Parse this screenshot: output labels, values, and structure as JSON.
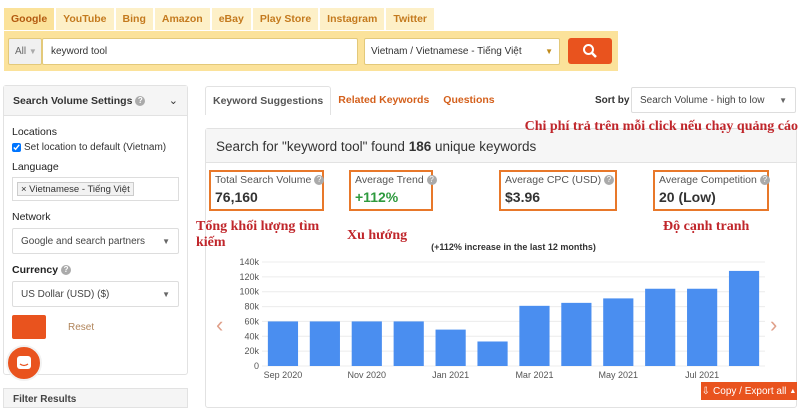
{
  "engine_tabs": [
    "Google",
    "YouTube",
    "Bing",
    "Amazon",
    "eBay",
    "Play Store",
    "Instagram",
    "Twitter"
  ],
  "search": {
    "scope": "All",
    "query": "keyword tool",
    "location_language": "Vietnam / Vietnamese - Tiếng Việt"
  },
  "sidebar": {
    "title": "Search Volume Settings",
    "locations_label": "Locations",
    "location_checkbox": "Set location to default (Vietnam)",
    "language_label": "Language",
    "language_tag": "× Vietnamese - Tiếng Việt",
    "network_label": "Network",
    "network_value": "Google and search partners",
    "currency_label": "Currency",
    "currency_value": "US Dollar (USD) ($)",
    "reset": "Reset",
    "next_panel": "Filter Results"
  },
  "result_tabs": [
    "Keyword Suggestions",
    "Related Keywords",
    "Questions"
  ],
  "sort": {
    "label": "Sort by",
    "value": "Search Volume - high to low"
  },
  "summary": {
    "prefix": "Search for \"keyword tool\" found ",
    "count": "186",
    "suffix": " unique keywords"
  },
  "stats": [
    {
      "title": "Total Search Volume",
      "value": "76,160",
      "color": "#222222"
    },
    {
      "title": "Average Trend",
      "value": "+112%",
      "color": "#2e9a3e"
    },
    {
      "title": "Average CPC (USD)",
      "value": "$3.96",
      "color": "#222222"
    },
    {
      "title": "Average Competition",
      "value": "20 (Low)",
      "color": "#222222"
    }
  ],
  "annotations": {
    "volume": "Tổng khối lượng tìm kiếm",
    "trend": "Xu hướng",
    "cpc": "Chi phí trả trên mỗi click nếu chạy quảng cáo",
    "competition": "Độ cạnh tranh"
  },
  "export_label": "Copy / Export all",
  "chart_data": {
    "type": "bar",
    "title": "(+112% increase in the last 12 months)",
    "categories": [
      "Sep 2020",
      "Oct 2020",
      "Nov 2020",
      "Dec 2020",
      "Jan 2021",
      "Feb 2021",
      "Mar 2021",
      "Apr 2021",
      "May 2021",
      "Jun 2021",
      "Jul 2021",
      "Aug 2021"
    ],
    "tick_labels": [
      "Sep 2020",
      "Nov 2020",
      "Jan 2021",
      "Mar 2021",
      "May 2021",
      "Jul 2021"
    ],
    "values": [
      60000,
      60000,
      60000,
      60000,
      49000,
      33000,
      81000,
      85000,
      91000,
      104000,
      104000,
      128000
    ],
    "ylim": [
      0,
      140000
    ],
    "yticks": [
      "0",
      "20k",
      "40k",
      "60k",
      "80k",
      "100k",
      "120k",
      "140k"
    ],
    "grid": true,
    "color": "#4a8ef0"
  }
}
